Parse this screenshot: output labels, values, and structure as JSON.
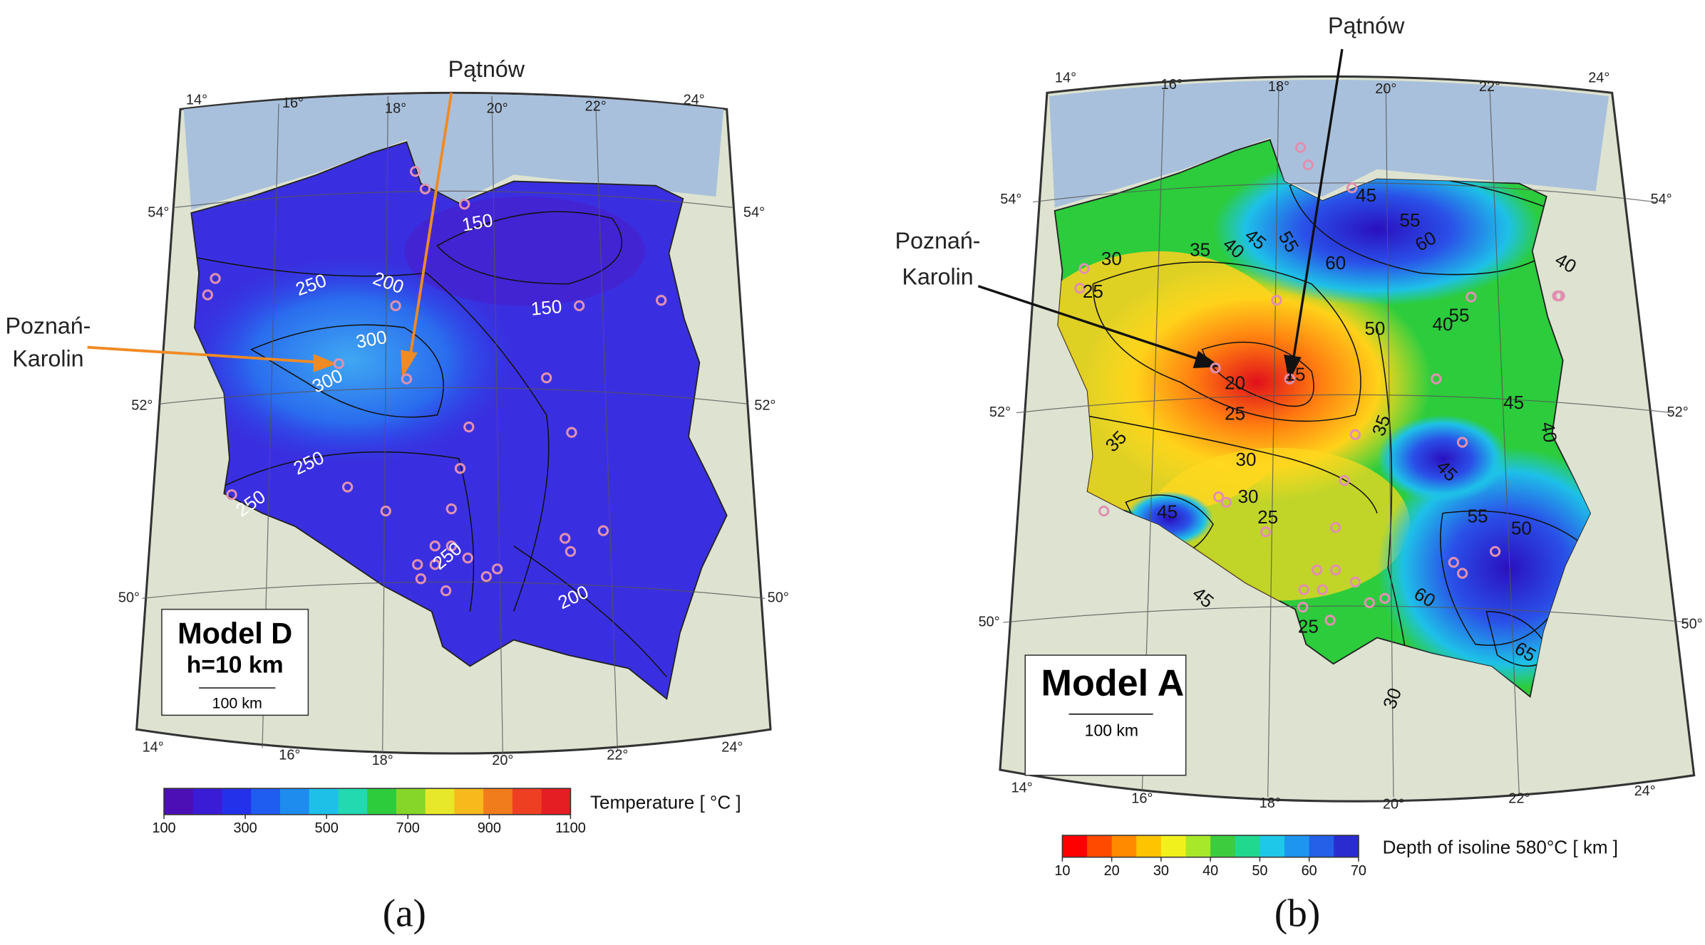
{
  "panels": [
    {
      "top_annotation": "Pątnów",
      "side_annotation": [
        "Poznań-",
        "Karolin"
      ],
      "longitude_top": [
        "14°",
        "16°",
        "18°",
        "20°",
        "22°",
        "24°"
      ],
      "longitude_bottom": [
        "14°",
        "16°",
        "18°",
        "20°",
        "22°",
        "24°"
      ],
      "latitude_left": [
        "54°",
        "52°",
        "50°"
      ],
      "latitude_right": [
        "54°",
        "52°",
        "50°"
      ],
      "model_box": {
        "title": "Model D",
        "subtitle": "h=10 km",
        "scale": "100 km"
      },
      "contour_labels": [
        "150",
        "150",
        "250",
        "200",
        "300",
        "300",
        "250",
        "250",
        "250",
        "200"
      ],
      "colorbar": {
        "ticks": [
          "100",
          "300",
          "500",
          "700",
          "900",
          "1100"
        ],
        "label": "Temperature  [ °C ]",
        "colors": [
          "#4b0fb5",
          "#3a1bd6",
          "#2431ea",
          "#1f5cf0",
          "#1e8cef",
          "#1ec0e8",
          "#22d9b0",
          "#2ccc3d",
          "#86d629",
          "#e8e82a",
          "#f7b91c",
          "#f07c1c",
          "#ef3f22",
          "#e51e24"
        ]
      },
      "caption": "(a)"
    },
    {
      "top_annotation": "Pątnów",
      "side_annotation": [
        "Poznań-",
        "Karolin"
      ],
      "longitude_top": [
        "14°",
        "16°",
        "18°",
        "20°",
        "22°",
        "24°"
      ],
      "longitude_bottom": [
        "14°",
        "16°",
        "18°",
        "20°",
        "22°",
        "24°"
      ],
      "latitude_left": [
        "54°",
        "52°",
        "50°"
      ],
      "latitude_right": [
        "54°",
        "52°",
        "50°"
      ],
      "model_box": {
        "title": "Model A",
        "scale": "100 km"
      },
      "contour_labels": [
        "45",
        "55",
        "60",
        "60",
        "55",
        "45",
        "40",
        "35",
        "30",
        "25",
        "20",
        "15",
        "25",
        "40",
        "50",
        "55",
        "45",
        "40",
        "35",
        "45",
        "30",
        "30",
        "25",
        "35",
        "45",
        "45",
        "25",
        "30",
        "55",
        "50",
        "60",
        "65",
        "40"
      ],
      "colorbar": {
        "ticks": [
          "10",
          "20",
          "30",
          "40",
          "50",
          "60",
          "70"
        ],
        "label": "Depth of isoline 580°C  [ km ]",
        "colors": [
          "#ff0000",
          "#ff4a00",
          "#ff8a00",
          "#ffc400",
          "#f2f01c",
          "#a8e82a",
          "#3ccc3d",
          "#20d98f",
          "#1ec8e8",
          "#1e96ef",
          "#2460e8",
          "#2a2cd0"
        ]
      },
      "caption": "(b)"
    }
  ]
}
